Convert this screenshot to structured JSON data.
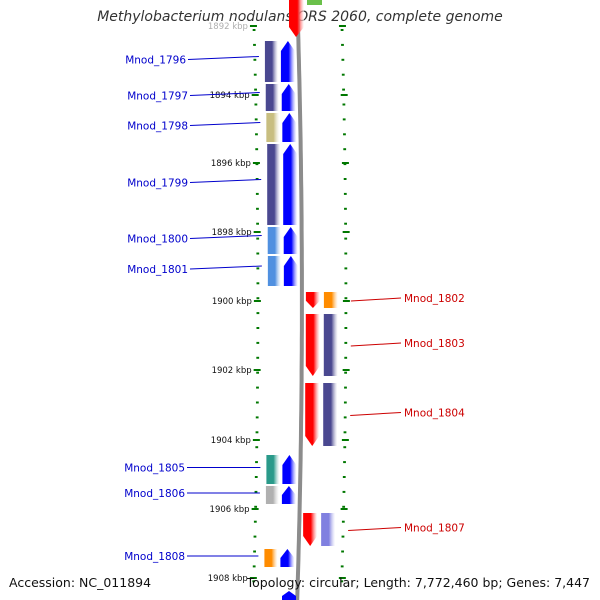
{
  "title": "Methylobacterium nodulans ORS 2060, complete genome",
  "footer": {
    "accession": "Accession: NC_011894",
    "stats": "Topology: circular; Length: 7,772,460 bp; Genes: 7,447"
  },
  "colors": {
    "forward_label": "#0000cc",
    "reverse_label": "#cc0000",
    "forward_gene": "#0000ff",
    "reverse_gene": "#ff0000",
    "backbone": "#8c8c8c",
    "tick": "#007700",
    "cog_purple": "#4a4890",
    "cog_khaki": "#c8be80",
    "cog_orange": "#ff8c00",
    "cog_lightblue": "#5090e0",
    "cog_teal": "#2a9a8a",
    "cog_grey": "#b0b0b0",
    "cog_lavender": "#8080e0"
  },
  "ticks": [
    {
      "label": "1892 kbp"
    },
    {
      "label": "1894 kbp"
    },
    {
      "label": "1896 kbp"
    },
    {
      "label": "1898 kbp"
    },
    {
      "label": "1900 kbp"
    },
    {
      "label": "1902 kbp"
    },
    {
      "label": "1904 kbp"
    },
    {
      "label": "1906 kbp"
    },
    {
      "label": "1908 kbp"
    }
  ],
  "forward_genes": [
    {
      "name": "Mnod_1796",
      "cog": "cog_purple"
    },
    {
      "name": "Mnod_1797",
      "cog": "cog_purple"
    },
    {
      "name": "Mnod_1798",
      "cog": "cog_khaki"
    },
    {
      "name": "Mnod_1799",
      "cog": "cog_purple"
    },
    {
      "name": "Mnod_1800",
      "cog": "cog_lightblue"
    },
    {
      "name": "Mnod_1801",
      "cog": "cog_lightblue"
    },
    {
      "name": "Mnod_1805",
      "cog": "cog_teal"
    },
    {
      "name": "Mnod_1806",
      "cog": "cog_grey"
    },
    {
      "name": "Mnod_1808",
      "cog": "cog_orange"
    }
  ],
  "reverse_genes": [
    {
      "name": "Mnod_1802",
      "cog": "cog_orange"
    },
    {
      "name": "Mnod_1803",
      "cog": "cog_purple"
    },
    {
      "name": "Mnod_1804",
      "cog": "cog_purple"
    },
    {
      "name": "Mnod_1807",
      "cog": "cog_lavender"
    }
  ]
}
